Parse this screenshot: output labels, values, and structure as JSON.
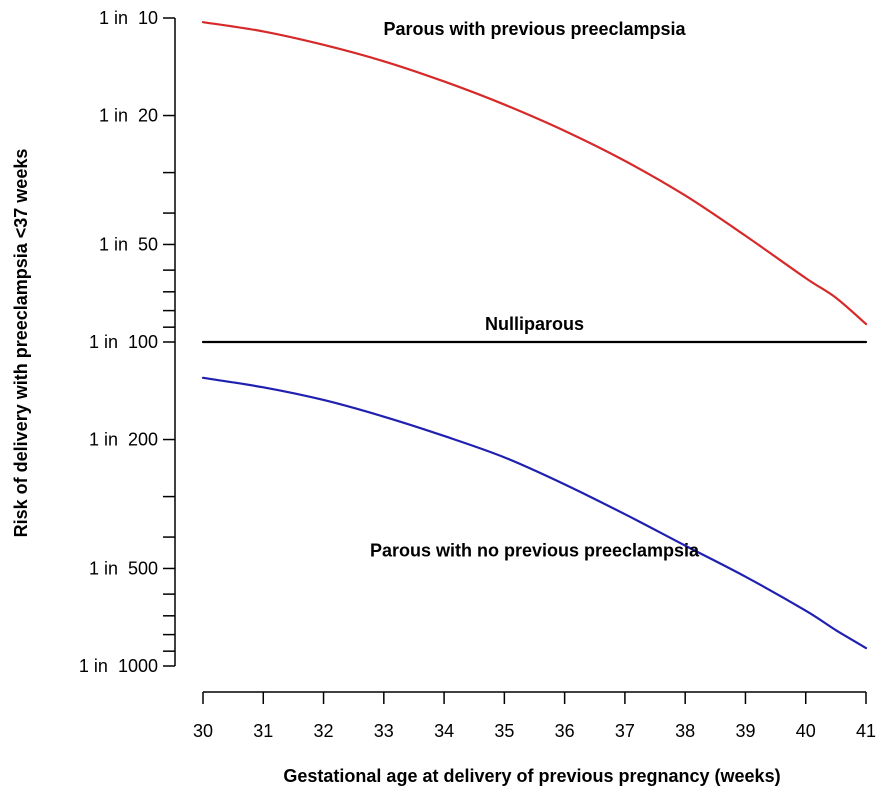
{
  "chart_data": {
    "type": "line",
    "xlabel": "Gestational age at delivery of previous pregnancy (weeks)",
    "ylabel": "Risk of delivery with preeclampsia <37 weeks",
    "xlim": [
      30,
      41
    ],
    "x_ticks": [
      30,
      31,
      32,
      33,
      34,
      35,
      36,
      37,
      38,
      39,
      40,
      41
    ],
    "y_scale": "log",
    "y_unit": "1 in N",
    "ylim": [
      10,
      1000
    ],
    "y_tick_labels": [
      {
        "value": 10,
        "label": "1 in  10"
      },
      {
        "value": 20,
        "label": "1 in  20"
      },
      {
        "value": 50,
        "label": "1 in  50"
      },
      {
        "value": 100,
        "label": "1 in  100"
      },
      {
        "value": 200,
        "label": "1 in  200"
      },
      {
        "value": 500,
        "label": "1 in  500"
      },
      {
        "value": 1000,
        "label": "1 in  1000"
      }
    ],
    "y_minor_ticks": [
      30,
      40,
      60,
      70,
      80,
      90,
      300,
      400,
      600,
      700,
      800,
      900
    ],
    "grid": false,
    "legend": "none",
    "series": [
      {
        "name": "Parous with previous preeclampsia",
        "color": "#d62a2a",
        "x": [
          30,
          31,
          32,
          33,
          34,
          35,
          36,
          37,
          38,
          39,
          40,
          40.5,
          41
        ],
        "values": [
          10.3,
          11.0,
          12.1,
          13.6,
          15.7,
          18.5,
          22.3,
          27.6,
          35.3,
          47.0,
          63.5,
          73.0,
          88.0
        ]
      },
      {
        "name": "Nulliparous",
        "color": "#000000",
        "x": [
          30,
          41
        ],
        "values": [
          100,
          100
        ]
      },
      {
        "name": "Parous with no previous preeclampsia",
        "color": "#2020b0",
        "x": [
          30,
          31,
          32,
          33,
          34,
          35,
          36,
          37,
          38,
          39,
          40,
          40.5,
          41
        ],
        "values": [
          129,
          138,
          151,
          170,
          195,
          227,
          275,
          340,
          425,
          530,
          675,
          775,
          880
        ]
      }
    ],
    "annotations": [
      {
        "text": "Parous with previous preeclampsia",
        "x": 35.5,
        "y": 10.8
      },
      {
        "text": "Nulliparous",
        "x": 35.5,
        "y": 88
      },
      {
        "text": "Parous with no previous preeclampsia",
        "x": 35.5,
        "y": 440
      }
    ]
  }
}
